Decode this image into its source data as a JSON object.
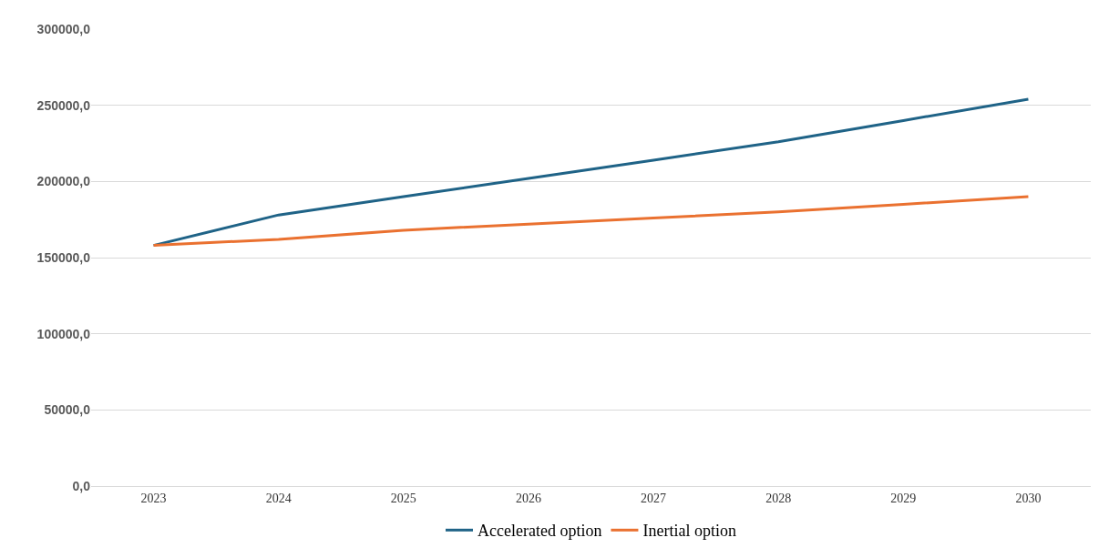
{
  "chart_data": {
    "type": "line",
    "categories": [
      "2023",
      "2024",
      "2025",
      "2026",
      "2027",
      "2028",
      "2029",
      "2030"
    ],
    "series": [
      {
        "name": "Accelerated option",
        "color": "#1f6387",
        "values": [
          158000,
          178000,
          190000,
          202000,
          214000,
          226000,
          240000,
          254000
        ]
      },
      {
        "name": "Inertial option",
        "color": "#ea7130",
        "values": [
          158000,
          162000,
          168000,
          172000,
          176000,
          180000,
          185000,
          190000
        ]
      }
    ],
    "ylim": [
      0,
      300000
    ],
    "yticks": [
      {
        "value": 0,
        "label": "0,0"
      },
      {
        "value": 50000,
        "label": "50000,0"
      },
      {
        "value": 100000,
        "label": "100000,0"
      },
      {
        "value": 150000,
        "label": "150000,0"
      },
      {
        "value": 200000,
        "label": "200000,0"
      },
      {
        "value": 250000,
        "label": "250000,0"
      },
      {
        "value": 300000,
        "label": "300000,0"
      }
    ],
    "grid": "y",
    "legend": "bottom",
    "marker": "none",
    "line_style": "solid"
  }
}
